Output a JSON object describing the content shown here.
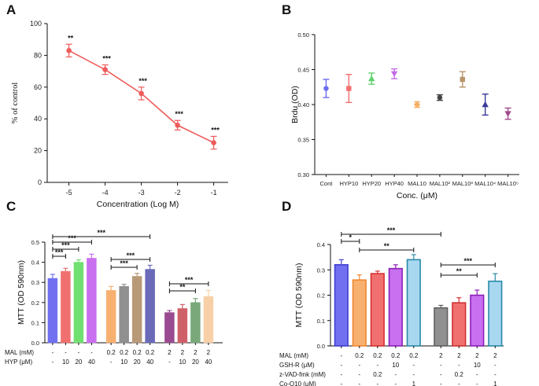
{
  "panels": {
    "a": "A",
    "b": "B",
    "c": "C",
    "d": "D"
  },
  "chart_data": [
    {
      "id": "A",
      "type": "line",
      "xlabel": "Concentration (Log M)",
      "ylabel": "% of control",
      "x": [
        -5,
        -4,
        -3,
        -2,
        -1
      ],
      "xticklabels": [
        "-5",
        "-4",
        "-3",
        "-2",
        "-1"
      ],
      "y": [
        83,
        71,
        56,
        36,
        25
      ],
      "err": [
        4,
        3,
        4,
        3,
        4
      ],
      "significance": [
        "**",
        "***",
        "***",
        "***",
        "***"
      ],
      "ylim": [
        0,
        100
      ],
      "yticks": [
        0,
        20,
        40,
        60,
        80,
        100
      ],
      "xlim": [
        -5.6,
        -0.6
      ],
      "color": "#ef5b5b"
    },
    {
      "id": "B",
      "type": "scatter",
      "xlabel": "Conc. (μM)",
      "ylabel": "Brdu (OD)",
      "categories": [
        "Cont",
        "HYP10",
        "HYP20",
        "HYP40",
        "MAL10",
        "MAL10²",
        "MAL10³",
        "MAL10⁴",
        "MAL10⁵"
      ],
      "values": [
        0.423,
        0.423,
        0.437,
        0.444,
        0.4,
        0.41,
        0.436,
        0.4,
        0.387
      ],
      "err": [
        0.013,
        0.02,
        0.008,
        0.007,
        0.004,
        0.004,
        0.011,
        0.015,
        0.008
      ],
      "markers": [
        "circle",
        "square",
        "triangle",
        "triangle-down",
        "diamond",
        "circle",
        "square",
        "triangle",
        "triangle-down"
      ],
      "colors": [
        "#6b6cf0",
        "#f07070",
        "#5fd16b",
        "#c46be8",
        "#f5b065",
        "#444444",
        "#b8946a",
        "#3a3a9a",
        "#a04a8c"
      ],
      "ylim": [
        0.3,
        0.5
      ],
      "yticks": [
        "0.30",
        "0.35",
        "0.40",
        "0.45",
        "0.50"
      ]
    },
    {
      "id": "C",
      "type": "bar",
      "ylabel": "MTT (OD 590nm)",
      "values": [
        0.32,
        0.355,
        0.4,
        0.42,
        0.26,
        0.28,
        0.33,
        0.365,
        0.15,
        0.17,
        0.2,
        0.23
      ],
      "err": [
        0.02,
        0.015,
        0.012,
        0.02,
        0.02,
        0.01,
        0.015,
        0.02,
        0.01,
        0.02,
        0.02,
        0.03
      ],
      "colors": [
        "#7070f0",
        "#f07070",
        "#70e070",
        "#c870f0",
        "#f8b070",
        "#909090",
        "#b89a78",
        "#6a6ab8",
        "#9a4a90",
        "#d06068",
        "#7aa87a",
        "#f8d0a8"
      ],
      "ylim": [
        0,
        0.5
      ],
      "yticks": [
        "0.0",
        "0.1",
        "0.2",
        "0.3",
        "0.4",
        "0.5"
      ],
      "row_labels": [
        "MAL (mM)",
        "HYP (μM)"
      ],
      "rows": [
        [
          "-",
          "-",
          "-",
          "-",
          "0.2",
          "0.2",
          "0.2",
          "0.2",
          "2",
          "2",
          "2",
          "2"
        ],
        [
          "-",
          "10",
          "20",
          "40",
          "-",
          "10",
          "20",
          "40",
          "-",
          "10",
          "20",
          "40"
        ]
      ],
      "brackets": [
        {
          "from": 0,
          "to": 1,
          "label": "***"
        },
        {
          "from": 0,
          "to": 2,
          "label": "***"
        },
        {
          "from": 0,
          "to": 3,
          "label": "***"
        },
        {
          "from": 0,
          "to": 7,
          "label": "***"
        },
        {
          "from": 4,
          "to": 6,
          "label": "***"
        },
        {
          "from": 4,
          "to": 7,
          "label": "***"
        },
        {
          "from": 8,
          "to": 10,
          "label": "**"
        },
        {
          "from": 8,
          "to": 11,
          "label": "***"
        }
      ]
    },
    {
      "id": "D",
      "type": "bar",
      "ylabel": "MTT (OD 590nm)",
      "values": [
        0.32,
        0.26,
        0.285,
        0.305,
        0.34,
        0.15,
        0.17,
        0.2,
        0.255
      ],
      "err": [
        0.02,
        0.02,
        0.01,
        0.015,
        0.02,
        0.01,
        0.02,
        0.02,
        0.03
      ],
      "colors": [
        "#7070f0",
        "#f8b070",
        "#f07070",
        "#c870f0",
        "#a8d8f0",
        "#909090",
        "#f07070",
        "#c870f0",
        "#a8d8f0"
      ],
      "edge_colors": [
        "#4040d0",
        "#f08830",
        "#d83030",
        "#8a20b8",
        "#2a8aa8",
        "#606060",
        "#d03030",
        "#8a20b8",
        "#2a8aa8"
      ],
      "ylim": [
        0,
        0.4
      ],
      "yticks": [
        "0.0",
        "0.1",
        "0.2",
        "0.3",
        "0.4"
      ],
      "row_labels": [
        "MAL (mM)",
        "GSH-R (μM)",
        "z-VAD-fmk (mM)",
        "Co-Q10 (μM)"
      ],
      "rows": [
        [
          "-",
          "0.2",
          "0.2",
          "0.2",
          "0.2",
          "2",
          "2",
          "2",
          "2"
        ],
        [
          "-",
          "-",
          "-",
          "10",
          "-",
          "-",
          "-",
          "10",
          "-"
        ],
        [
          "-",
          "-",
          "0.2",
          "-",
          "-",
          "-",
          "0.2",
          "-",
          "-"
        ],
        [
          "-",
          "-",
          "-",
          "-",
          "1",
          "-",
          "-",
          "-",
          "1"
        ]
      ],
      "brackets": [
        {
          "from": 0,
          "to": 1,
          "label": "*"
        },
        {
          "from": 0,
          "to": 5,
          "label": "***"
        },
        {
          "from": 1,
          "to": 4,
          "label": "**"
        },
        {
          "from": 5,
          "to": 7,
          "label": "**"
        },
        {
          "from": 5,
          "to": 8,
          "label": "***"
        }
      ]
    }
  ]
}
